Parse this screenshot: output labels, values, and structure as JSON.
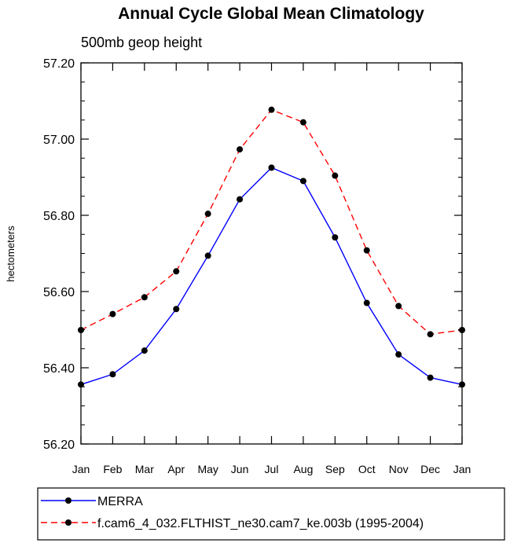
{
  "chart_data": {
    "type": "line",
    "title": "Annual Cycle Global Mean Climatology",
    "subtitle": "500mb geop height",
    "ylabel": "hectometers",
    "xlabel": "",
    "categories": [
      "Jan",
      "Feb",
      "Mar",
      "Apr",
      "May",
      "Jun",
      "Jul",
      "Aug",
      "Sep",
      "Oct",
      "Nov",
      "Dec",
      "Jan"
    ],
    "ylim": [
      56.2,
      57.2
    ],
    "yticks": [
      "56.20",
      "56.40",
      "56.60",
      "56.80",
      "57.00",
      "57.20"
    ],
    "series": [
      {
        "name": "MERRA",
        "color": "#0000ff",
        "dash": "solid",
        "values": [
          56.356,
          56.383,
          56.445,
          56.554,
          56.694,
          56.842,
          56.925,
          56.89,
          56.742,
          56.57,
          56.435,
          56.374,
          56.356
        ]
      },
      {
        "name": "f.cam6_4_032.FLTHIST_ne30.cam7_ke.003b (1995-2004)",
        "color": "#ff0000",
        "dash": "dashed",
        "values": [
          56.499,
          56.541,
          56.585,
          56.653,
          56.804,
          56.973,
          57.077,
          57.044,
          56.904,
          56.708,
          56.562,
          56.488,
          56.499
        ]
      }
    ],
    "grid": false,
    "legend_position": "bottom"
  }
}
